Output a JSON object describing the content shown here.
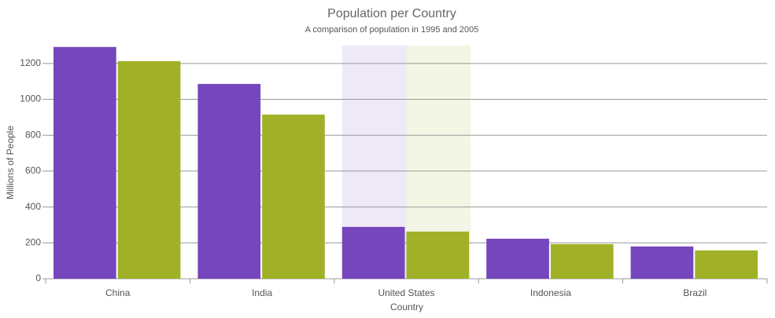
{
  "chart_data": {
    "type": "bar",
    "title": "Population per Country",
    "subtitle": "A comparison of population in 1995 and 2005",
    "x_label": "Country",
    "y_label": "Millions of People",
    "categories": [
      "China",
      "India",
      "United States",
      "Indonesia",
      "Brazil"
    ],
    "series": [
      {
        "color": "#7646bd",
        "values": [
          1292,
          1086,
          289,
          223,
          180
        ]
      },
      {
        "color": "#a0b128",
        "values": [
          1213,
          915,
          263,
          193,
          158
        ]
      }
    ],
    "ylim": [
      0,
      1300
    ],
    "yticks": [
      0,
      200,
      400,
      600,
      800,
      1000,
      1200
    ],
    "grid": true
  }
}
